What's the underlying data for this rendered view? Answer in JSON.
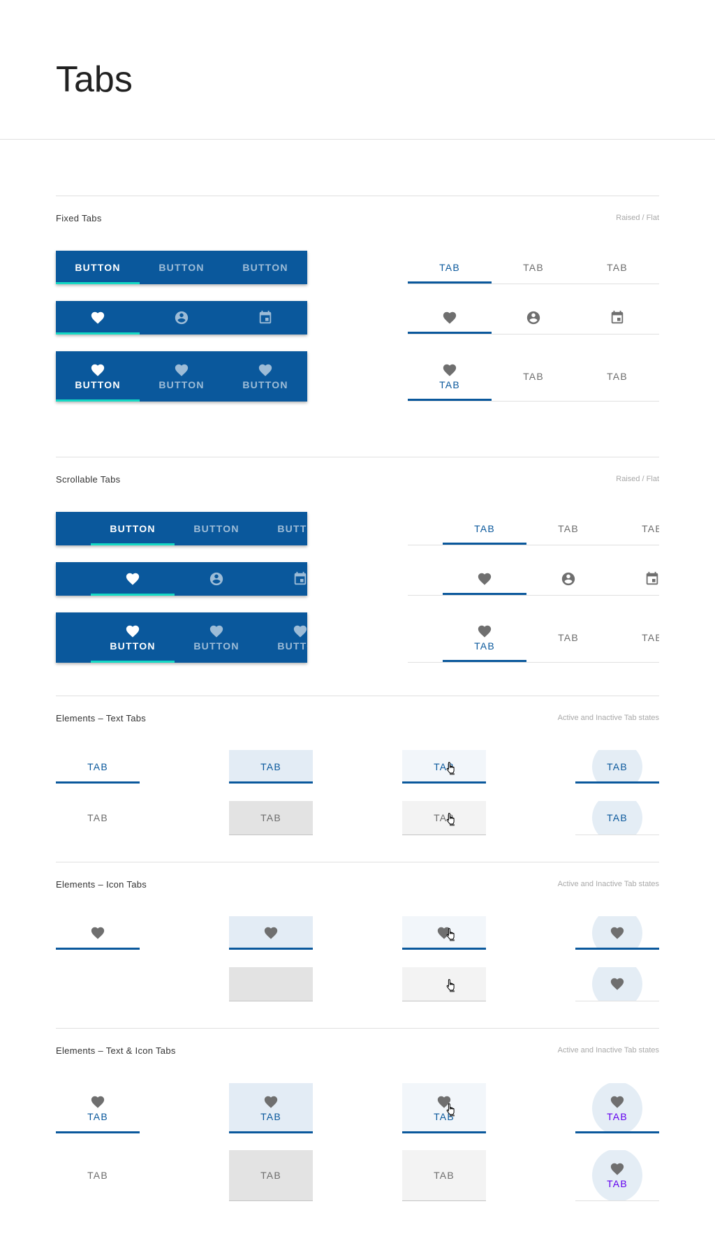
{
  "page": {
    "title": "Tabs"
  },
  "colors": {
    "primary": "#0a589c",
    "indicator_raised": "#14d9c4",
    "inactive_text": "#6d6d6d",
    "hover_bg": "#e3ecf5",
    "ripple_text_purple": "#6200ee"
  },
  "sections": [
    {
      "title": "Fixed Tabs",
      "subtitle": "Raised / Flat",
      "kind": "bars",
      "scroll": false,
      "raised": [
        {
          "tabs": [
            {
              "label": "BUTTON",
              "active": true
            },
            {
              "label": "BUTTON"
            },
            {
              "label": "BUTTON"
            }
          ]
        },
        {
          "tabs": [
            {
              "icon": "heart",
              "active": true
            },
            {
              "icon": "account-circle"
            },
            {
              "icon": "calendar"
            }
          ]
        },
        {
          "tabs": [
            {
              "icon": "heart",
              "label": "BUTTON",
              "active": true
            },
            {
              "icon": "heart",
              "label": "BUTTON"
            },
            {
              "icon": "heart",
              "label": "BUTTON"
            }
          ]
        }
      ],
      "flat": [
        {
          "tabs": [
            {
              "label": "TAB",
              "active": true
            },
            {
              "label": "TAB"
            },
            {
              "label": "TAB"
            }
          ]
        },
        {
          "tabs": [
            {
              "icon": "heart",
              "active": true
            },
            {
              "icon": "account-circle"
            },
            {
              "icon": "calendar"
            }
          ]
        },
        {
          "tabs": [
            {
              "icon": "heart",
              "label": "TAB",
              "active": true
            },
            {
              "label": "TAB"
            },
            {
              "label": "TAB"
            }
          ]
        }
      ]
    },
    {
      "title": "Scrollable Tabs",
      "subtitle": "Raised / Flat",
      "kind": "bars",
      "scroll": true,
      "raised": [
        {
          "tabs": [
            {
              "label": "BUTTON",
              "active": true
            },
            {
              "label": "BUTTON"
            },
            {
              "label": "BUTTON"
            }
          ]
        },
        {
          "tabs": [
            {
              "icon": "heart",
              "active": true
            },
            {
              "icon": "account-circle"
            },
            {
              "icon": "calendar"
            }
          ]
        },
        {
          "tabs": [
            {
              "icon": "heart",
              "label": "BUTTON",
              "active": true
            },
            {
              "icon": "heart",
              "label": "BUTTON"
            },
            {
              "icon": "heart",
              "label": "BUTTON"
            }
          ]
        }
      ],
      "flat": [
        {
          "tabs": [
            {
              "label": "TAB",
              "active": true
            },
            {
              "label": "TAB"
            },
            {
              "label": "TAB"
            }
          ]
        },
        {
          "tabs": [
            {
              "icon": "heart",
              "active": true
            },
            {
              "icon": "account-circle"
            },
            {
              "icon": "calendar"
            }
          ]
        },
        {
          "tabs": [
            {
              "icon": "heart",
              "label": "TAB",
              "active": true
            },
            {
              "label": "TAB"
            },
            {
              "label": "TAB"
            }
          ]
        }
      ]
    },
    {
      "title": "Elements – Text Tabs",
      "subtitle": "Active and Inactive Tab states",
      "kind": "elements",
      "states": [
        "normal",
        "hover",
        "focus",
        "ripple"
      ],
      "rows": [
        {
          "active": true,
          "cells": [
            {
              "label": "TAB"
            },
            {
              "label": "TAB"
            },
            {
              "label": "TAB",
              "cursor": true
            },
            {
              "label": "TAB"
            }
          ]
        },
        {
          "active": false,
          "cells": [
            {
              "label": "TAB"
            },
            {
              "label": "TAB"
            },
            {
              "label": "TAB",
              "cursor": true
            },
            {
              "label": "TAB",
              "label_active": true
            }
          ]
        }
      ]
    },
    {
      "title": "Elements – Icon Tabs",
      "subtitle": "Active and Inactive Tab states",
      "kind": "elements",
      "states": [
        "normal",
        "hover",
        "focus",
        "ripple"
      ],
      "rows": [
        {
          "active": true,
          "cells": [
            {
              "icon": "heart"
            },
            {
              "icon": "heart"
            },
            {
              "icon": "heart",
              "cursor": true
            },
            {
              "icon": "heart"
            }
          ]
        },
        {
          "active": false,
          "cells": [
            {},
            {},
            {
              "cursor": true
            },
            {
              "icon": "heart"
            }
          ]
        }
      ]
    },
    {
      "title": "Elements – Text & Icon Tabs",
      "subtitle": "Active and Inactive Tab states",
      "kind": "elements",
      "tall": true,
      "states": [
        "normal",
        "hover",
        "focus",
        "ripple"
      ],
      "rows": [
        {
          "active": true,
          "cells": [
            {
              "icon": "heart",
              "label": "TAB"
            },
            {
              "icon": "heart",
              "label": "TAB"
            },
            {
              "icon": "heart",
              "label": "TAB",
              "cursor": true
            },
            {
              "icon": "heart",
              "label": "TAB",
              "purple": true
            }
          ]
        },
        {
          "active": false,
          "cells": [
            {
              "label": "TAB"
            },
            {
              "label": "TAB"
            },
            {
              "label": "TAB"
            },
            {
              "icon": "heart",
              "label": "TAB",
              "purple": true
            }
          ]
        }
      ]
    }
  ]
}
